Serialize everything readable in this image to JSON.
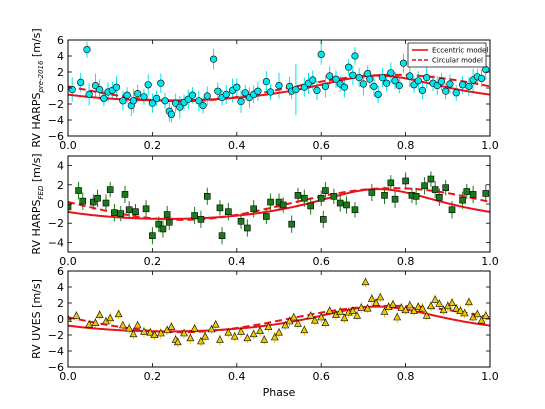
{
  "chart_data": [
    {
      "type": "scatter",
      "ylabel": "RV HARPS",
      "ylabel_sub": "pre-2016",
      "ylabel_unit": " [m/s]",
      "xlim": [
        0.0,
        1.0
      ],
      "ylim": [
        -6,
        6
      ],
      "xticks": [
        "0.0",
        "0.2",
        "0.4",
        "0.6",
        "0.8",
        "1.0"
      ],
      "yticks": [
        "−6",
        "−4",
        "−2",
        "0",
        "2",
        "4",
        "6"
      ],
      "marker": "circle",
      "marker_color": "#00e5ee",
      "legend": {
        "placement": "top-right",
        "entries": [
          {
            "label": "Eccentric model",
            "style": "solid"
          },
          {
            "label": "Circular model",
            "style": "dashed"
          }
        ]
      },
      "points": [
        [
          0.01,
          -0.2,
          1.5
        ],
        [
          0.03,
          0.7,
          1.2
        ],
        [
          0.045,
          4.8,
          1.0
        ],
        [
          0.05,
          -0.8,
          1.4
        ],
        [
          0.065,
          0.3,
          1.5
        ],
        [
          0.075,
          -0.2,
          1.3
        ],
        [
          0.085,
          -1.3,
          1.0
        ],
        [
          0.095,
          -0.5,
          1.2
        ],
        [
          0.105,
          -0.3,
          1.1
        ],
        [
          0.115,
          0.1,
          1.4
        ],
        [
          0.13,
          -1.6,
          1.2
        ],
        [
          0.14,
          -0.9,
          1.0
        ],
        [
          0.15,
          -2.2,
          1.3
        ],
        [
          0.155,
          -1.6,
          1.5
        ],
        [
          0.165,
          -0.7,
          1.1
        ],
        [
          0.18,
          -1.1,
          1.0
        ],
        [
          0.19,
          0.4,
          1.3
        ],
        [
          0.2,
          -1.9,
          1.2
        ],
        [
          0.21,
          -1.3,
          1.0
        ],
        [
          0.22,
          0.6,
          1.2
        ],
        [
          0.23,
          -1.6,
          1.0
        ],
        [
          0.24,
          -2.9,
          1.3
        ],
        [
          0.245,
          -3.3,
          1.0
        ],
        [
          0.255,
          -1.9,
          1.2
        ],
        [
          0.265,
          -2.4,
          1.4
        ],
        [
          0.275,
          -1.8,
          1.0
        ],
        [
          0.285,
          -1.4,
          1.2
        ],
        [
          0.295,
          -0.9,
          1.0
        ],
        [
          0.31,
          -1.6,
          1.3
        ],
        [
          0.32,
          -2.2,
          1.0
        ],
        [
          0.33,
          -1.0,
          1.2
        ],
        [
          0.345,
          3.6,
          1.3
        ],
        [
          0.355,
          -0.4,
          1.1
        ],
        [
          0.365,
          -1.2,
          1.0
        ],
        [
          0.375,
          -0.8,
          1.2
        ],
        [
          0.39,
          -0.3,
          1.5
        ],
        [
          0.4,
          0.1,
          1.1
        ],
        [
          0.41,
          -1.7,
          1.4
        ],
        [
          0.42,
          -0.6,
          1.0
        ],
        [
          0.43,
          -1.2,
          1.3
        ],
        [
          0.44,
          -0.8,
          1.1
        ],
        [
          0.45,
          -0.4,
          1.2
        ],
        [
          0.47,
          0.8,
          1.3
        ],
        [
          0.48,
          -0.5,
          1.0
        ],
        [
          0.5,
          0.3,
          1.6
        ],
        [
          0.525,
          0.2,
          1.2
        ],
        [
          0.53,
          -0.4,
          1.0
        ],
        [
          0.54,
          -0.2,
          3.2
        ],
        [
          0.56,
          0.1,
          1.2
        ],
        [
          0.57,
          0.6,
          1.3
        ],
        [
          0.58,
          1.0,
          1.2
        ],
        [
          0.59,
          -0.3,
          1.2
        ],
        [
          0.6,
          4.2,
          1.3
        ],
        [
          0.61,
          0.2,
          1.4
        ],
        [
          0.62,
          1.5,
          1.2
        ],
        [
          0.635,
          1.1,
          1.1
        ],
        [
          0.645,
          0.5,
          1.0
        ],
        [
          0.655,
          0.1,
          1.3
        ],
        [
          0.665,
          2.6,
          1.0
        ],
        [
          0.675,
          1.6,
          1.2
        ],
        [
          0.68,
          4.0,
          1.1
        ],
        [
          0.69,
          1.3,
          1.2
        ],
        [
          0.7,
          0.5,
          1.4
        ],
        [
          0.71,
          1.8,
          1.0
        ],
        [
          0.715,
          1.1,
          1.2
        ],
        [
          0.725,
          0.2,
          1.3
        ],
        [
          0.735,
          -0.8,
          1.1
        ],
        [
          0.745,
          1.3,
          1.2
        ],
        [
          0.755,
          0.6,
          1.0
        ],
        [
          0.765,
          1.9,
          1.3
        ],
        [
          0.775,
          0.9,
          1.1
        ],
        [
          0.785,
          0.3,
          1.0
        ],
        [
          0.795,
          3.1,
          1.2
        ],
        [
          0.81,
          1.5,
          1.4
        ],
        [
          0.82,
          0.4,
          1.0
        ],
        [
          0.83,
          0.9,
          1.2
        ],
        [
          0.84,
          -0.3,
          1.1
        ],
        [
          0.85,
          1.3,
          1.3
        ],
        [
          0.865,
          0.6,
          1.0
        ],
        [
          0.875,
          0.3,
          1.2
        ],
        [
          0.885,
          0.8,
          1.1
        ],
        [
          0.895,
          -0.4,
          1.0
        ],
        [
          0.905,
          0.5,
          1.2
        ],
        [
          0.92,
          -0.6,
          1.0
        ],
        [
          0.935,
          0.4,
          1.1
        ],
        [
          0.95,
          0.2,
          1.2
        ],
        [
          0.96,
          1.0,
          1.4
        ],
        [
          0.97,
          1.4,
          1.0
        ],
        [
          0.98,
          1.2,
          1.1
        ],
        [
          0.99,
          2.3,
          1.3
        ]
      ]
    },
    {
      "type": "scatter",
      "ylabel": "RV HARPS",
      "ylabel_sub": "FED",
      "ylabel_unit": " [m/s]",
      "xlim": [
        0.0,
        1.0
      ],
      "ylim": [
        -5,
        5
      ],
      "xticks": [
        "0.0",
        "0.2",
        "0.4",
        "0.6",
        "0.8",
        "1.0"
      ],
      "yticks": [
        "−4",
        "−2",
        "0",
        "2",
        "4"
      ],
      "marker": "square",
      "marker_color": "#1a7a1a",
      "points": [
        [
          0.0,
          -0.3,
          1.0
        ],
        [
          0.025,
          1.4,
          0.9
        ],
        [
          0.035,
          0.3,
          0.9
        ],
        [
          0.06,
          0.2,
          0.8
        ],
        [
          0.07,
          0.6,
          0.9
        ],
        [
          0.09,
          0.1,
          0.9
        ],
        [
          0.1,
          1.5,
          0.8
        ],
        [
          0.11,
          -0.9,
          0.9
        ],
        [
          0.125,
          -1.0,
          0.8
        ],
        [
          0.135,
          1.0,
          0.9
        ],
        [
          0.145,
          -0.6,
          0.9
        ],
        [
          0.16,
          -0.8,
          0.8
        ],
        [
          0.185,
          -0.5,
          0.9
        ],
        [
          0.2,
          -3.3,
          0.9
        ],
        [
          0.215,
          -2.1,
          0.8
        ],
        [
          0.225,
          -2.6,
          0.9
        ],
        [
          0.235,
          -1.1,
          0.9
        ],
        [
          0.24,
          -1.9,
          0.8
        ],
        [
          0.3,
          -1.2,
          0.9
        ],
        [
          0.315,
          -1.6,
          0.9
        ],
        [
          0.33,
          0.8,
          0.9
        ],
        [
          0.36,
          -0.4,
          0.8
        ],
        [
          0.365,
          -3.3,
          0.9
        ],
        [
          0.38,
          -0.8,
          0.9
        ],
        [
          0.41,
          -1.8,
          0.8
        ],
        [
          0.425,
          -2.5,
          0.9
        ],
        [
          0.44,
          -0.5,
          0.9
        ],
        [
          0.47,
          -1.3,
          0.8
        ],
        [
          0.48,
          0.2,
          0.9
        ],
        [
          0.5,
          0.2,
          0.9
        ],
        [
          0.51,
          -0.1,
          0.8
        ],
        [
          0.53,
          -2.1,
          0.9
        ],
        [
          0.545,
          0.9,
          0.8
        ],
        [
          0.56,
          0.6,
          0.9
        ],
        [
          0.575,
          -0.2,
          0.9
        ],
        [
          0.6,
          0.6,
          0.8
        ],
        [
          0.605,
          -1.6,
          0.9
        ],
        [
          0.61,
          1.4,
          0.9
        ],
        [
          0.63,
          0.8,
          0.8
        ],
        [
          0.645,
          0.1,
          0.9
        ],
        [
          0.66,
          -0.1,
          0.9
        ],
        [
          0.68,
          -0.6,
          0.8
        ],
        [
          0.72,
          1.2,
          0.9
        ],
        [
          0.75,
          0.9,
          0.9
        ],
        [
          0.765,
          2.2,
          0.8
        ],
        [
          0.775,
          0.5,
          0.9
        ],
        [
          0.8,
          2.4,
          0.9
        ],
        [
          0.815,
          0.9,
          0.8
        ],
        [
          0.825,
          0.8,
          0.9
        ],
        [
          0.845,
          1.9,
          0.9
        ],
        [
          0.86,
          2.6,
          0.8
        ],
        [
          0.87,
          1.5,
          0.9
        ],
        [
          0.88,
          0.7,
          0.9
        ],
        [
          0.895,
          1.7,
          0.8
        ],
        [
          0.91,
          -0.6,
          0.9
        ],
        [
          0.935,
          0.4,
          0.9
        ],
        [
          0.945,
          1.3,
          0.8
        ],
        [
          0.96,
          1.0,
          0.9
        ],
        [
          0.99,
          1.1,
          0.9
        ]
      ]
    },
    {
      "type": "scatter",
      "ylabel": "RV UVES [m/s]",
      "xlabel": "Phase",
      "xlim": [
        0.0,
        1.0
      ],
      "ylim": [
        -6,
        6
      ],
      "xticks": [
        "0.0",
        "0.2",
        "0.4",
        "0.6",
        "0.8",
        "1.0"
      ],
      "yticks": [
        "−6",
        "−4",
        "−2",
        "0",
        "2",
        "4",
        "6"
      ],
      "marker": "triangle",
      "marker_color": "#eec900",
      "points": [
        [
          0.0,
          0.0,
          0.7
        ],
        [
          0.02,
          0.4,
          0.6
        ],
        [
          0.05,
          -0.7,
          0.6
        ],
        [
          0.065,
          -0.5,
          0.7
        ],
        [
          0.075,
          0.5,
          0.6
        ],
        [
          0.09,
          -0.3,
          0.6
        ],
        [
          0.1,
          0.1,
          0.7
        ],
        [
          0.12,
          0.6,
          0.6
        ],
        [
          0.13,
          -0.8,
          0.6
        ],
        [
          0.145,
          -1.2,
          0.7
        ],
        [
          0.155,
          -1.9,
          0.6
        ],
        [
          0.165,
          -0.8,
          0.6
        ],
        [
          0.18,
          -1.6,
          0.7
        ],
        [
          0.195,
          -1.7,
          0.6
        ],
        [
          0.205,
          -2.0,
          0.6
        ],
        [
          0.22,
          -1.8,
          0.7
        ],
        [
          0.235,
          -1.4,
          0.6
        ],
        [
          0.245,
          -1.0,
          0.6
        ],
        [
          0.255,
          -2.6,
          0.7
        ],
        [
          0.26,
          -2.9,
          0.6
        ],
        [
          0.275,
          -1.8,
          0.6
        ],
        [
          0.29,
          -2.4,
          0.7
        ],
        [
          0.3,
          -1.2,
          0.6
        ],
        [
          0.315,
          -2.8,
          0.6
        ],
        [
          0.325,
          -2.2,
          0.7
        ],
        [
          0.34,
          -1.3,
          0.6
        ],
        [
          0.35,
          -0.7,
          0.6
        ],
        [
          0.36,
          -2.6,
          0.7
        ],
        [
          0.38,
          -1.7,
          0.6
        ],
        [
          0.395,
          -2.2,
          0.6
        ],
        [
          0.41,
          -1.6,
          0.7
        ],
        [
          0.425,
          -2.4,
          0.6
        ],
        [
          0.44,
          -1.9,
          0.6
        ],
        [
          0.455,
          -1.5,
          0.7
        ],
        [
          0.465,
          -2.6,
          0.6
        ],
        [
          0.475,
          -1.0,
          0.6
        ],
        [
          0.49,
          -2.3,
          0.7
        ],
        [
          0.5,
          -1.7,
          0.6
        ],
        [
          0.515,
          -0.8,
          0.6
        ],
        [
          0.525,
          -0.3,
          0.7
        ],
        [
          0.535,
          0.2,
          0.6
        ],
        [
          0.545,
          -0.6,
          0.6
        ],
        [
          0.56,
          -1.4,
          0.7
        ],
        [
          0.575,
          0.4,
          0.6
        ],
        [
          0.585,
          -0.2,
          0.6
        ],
        [
          0.6,
          0.2,
          0.7
        ],
        [
          0.61,
          -0.5,
          0.6
        ],
        [
          0.62,
          1.0,
          0.6
        ],
        [
          0.635,
          0.5,
          0.7
        ],
        [
          0.645,
          0.9,
          0.6
        ],
        [
          0.655,
          0.1,
          0.6
        ],
        [
          0.665,
          0.8,
          0.7
        ],
        [
          0.675,
          1.0,
          0.6
        ],
        [
          0.685,
          0.4,
          0.6
        ],
        [
          0.695,
          1.4,
          0.7
        ],
        [
          0.705,
          4.6,
          0.6
        ],
        [
          0.71,
          1.3,
          0.6
        ],
        [
          0.72,
          2.5,
          0.7
        ],
        [
          0.73,
          2.0,
          0.6
        ],
        [
          0.74,
          2.7,
          0.6
        ],
        [
          0.75,
          0.9,
          0.7
        ],
        [
          0.76,
          1.5,
          0.6
        ],
        [
          0.77,
          1.8,
          0.6
        ],
        [
          0.78,
          0.2,
          0.7
        ],
        [
          0.79,
          1.4,
          0.6
        ],
        [
          0.8,
          1.1,
          0.6
        ],
        [
          0.81,
          1.7,
          0.7
        ],
        [
          0.82,
          1.0,
          0.6
        ],
        [
          0.83,
          1.5,
          0.6
        ],
        [
          0.84,
          1.3,
          0.7
        ],
        [
          0.85,
          0.4,
          0.6
        ],
        [
          0.86,
          1.6,
          0.6
        ],
        [
          0.87,
          2.4,
          0.7
        ],
        [
          0.88,
          1.9,
          0.6
        ],
        [
          0.89,
          1.1,
          0.6
        ],
        [
          0.9,
          1.6,
          0.7
        ],
        [
          0.91,
          2.0,
          0.6
        ],
        [
          0.92,
          1.3,
          0.6
        ],
        [
          0.93,
          1.0,
          0.7
        ],
        [
          0.94,
          0.7,
          0.6
        ],
        [
          0.95,
          2.1,
          0.6
        ],
        [
          0.96,
          0.2,
          0.7
        ],
        [
          0.97,
          0.6,
          0.6
        ],
        [
          0.98,
          -0.2,
          0.6
        ],
        [
          0.99,
          0.4,
          0.7
        ]
      ]
    }
  ],
  "model": {
    "eccentric": {
      "color": "#e8141a",
      "style": "solid",
      "amplitude": 1.55,
      "center_phase": 0.735,
      "ecc": 0.25
    },
    "circular": {
      "color": "#e8141a",
      "style": "dashed",
      "amplitude": 1.65,
      "center_phase": 0.77
    }
  }
}
